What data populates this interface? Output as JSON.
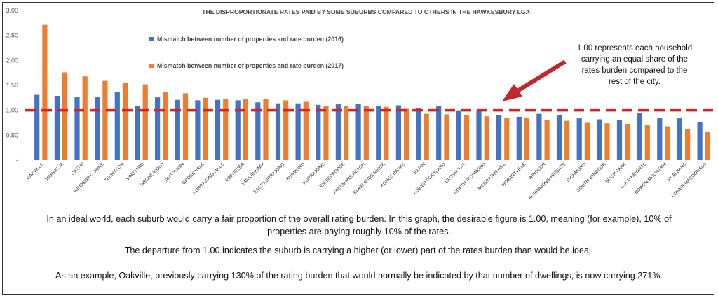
{
  "chart_data": {
    "type": "bar",
    "title": "THE DISPROPORTIONATE RATES PAID BY SOME SUBURBS COMPARED TO OTHERS  IN THE HAWKESBURY LGA",
    "xlabel": "",
    "ylabel": "",
    "ylim": [
      0,
      3
    ],
    "yticks": [
      "3.00",
      "2.50",
      "2.00",
      "1.50",
      "1.00",
      "0.50",
      "-"
    ],
    "grid": false,
    "legend": "top-left",
    "categories": [
      "OAKVILLE",
      "MARAYLYA",
      "CATTAI",
      "WINDSOR DOWNS",
      "TENNYSON",
      "VINEYARD",
      "GROSE WOLD",
      "PITT TOWN",
      "GROSE VALE",
      "KURRAJONG HILLS",
      "EBENEZER",
      "YARRAMUNDI",
      "EAST KURRAJONG",
      "KURMOND",
      "KURRAJONG",
      "WILBERFORCE",
      "FREEMANS REACH",
      "BLAXLANDS RIDGE",
      "AGNES BANKS",
      "BILPIN",
      "LOWER PORTLAND",
      "GLOSSODIA",
      "NORTH RICHMOND",
      "MCGRATHS HILL",
      "HOBARTVILLE",
      "WINDSOR",
      "KURRAJONG HEIGHTS",
      "RICHMOND",
      "SOUTH WINDSOR",
      "BLIGH PARK",
      "COLO HEIGHTS",
      "BOWEN MOUNTAIN",
      "ST ALBANS",
      "LOWER MACDONALD"
    ],
    "series": [
      {
        "name": "Mismatch between number  of properties and rate burden (2016)",
        "color": "#4472C4",
        "values": [
          1.31,
          1.29,
          1.26,
          1.26,
          1.36,
          1.09,
          1.26,
          1.21,
          1.2,
          1.21,
          1.2,
          1.16,
          1.14,
          1.14,
          1.11,
          1.12,
          1.13,
          1.08,
          1.1,
          1.05,
          1.09,
          1.0,
          1.0,
          0.9,
          0.87,
          0.93,
          0.9,
          0.84,
          0.82,
          0.8,
          0.94,
          0.84,
          0.84,
          0.77
        ]
      },
      {
        "name": "Mismatch between number of properties and rate burden (2017)",
        "color": "#ED7D31",
        "values": [
          2.71,
          1.76,
          1.68,
          1.59,
          1.55,
          1.52,
          1.36,
          1.34,
          1.25,
          1.23,
          1.22,
          1.22,
          1.2,
          1.17,
          1.09,
          1.09,
          1.08,
          1.07,
          1.03,
          0.93,
          0.92,
          0.9,
          0.88,
          0.85,
          0.85,
          0.81,
          0.79,
          0.75,
          0.74,
          0.73,
          0.7,
          0.68,
          0.63,
          0.57
        ]
      }
    ],
    "reference_line": {
      "value": 1.0,
      "color": "#E02020"
    },
    "annotation": {
      "lines": [
        "1.00 represents each household",
        "carrying an equal share of the",
        "rates burden compared to the",
        "rest of the city."
      ],
      "arrow_color": "#C0262C"
    }
  },
  "description": {
    "p1_line1": "In an ideal world, each suburb would carry a fair proportion of the overall  rating burden. In this graph, the desirable figure is 1.00, meaning (for example), 10% of",
    "p1_line2": "properties are paying roughly 10% of the rates.",
    "p2": "The departure from 1.00 indicates the suburb is carrying a higher (or lower) part of the rates burden than would be ideal.",
    "p3": "As an example, Oakville, previously carrying 130% of the rating burden that would normally be indicated by that number of  dwellings, is now carrying 271%."
  }
}
